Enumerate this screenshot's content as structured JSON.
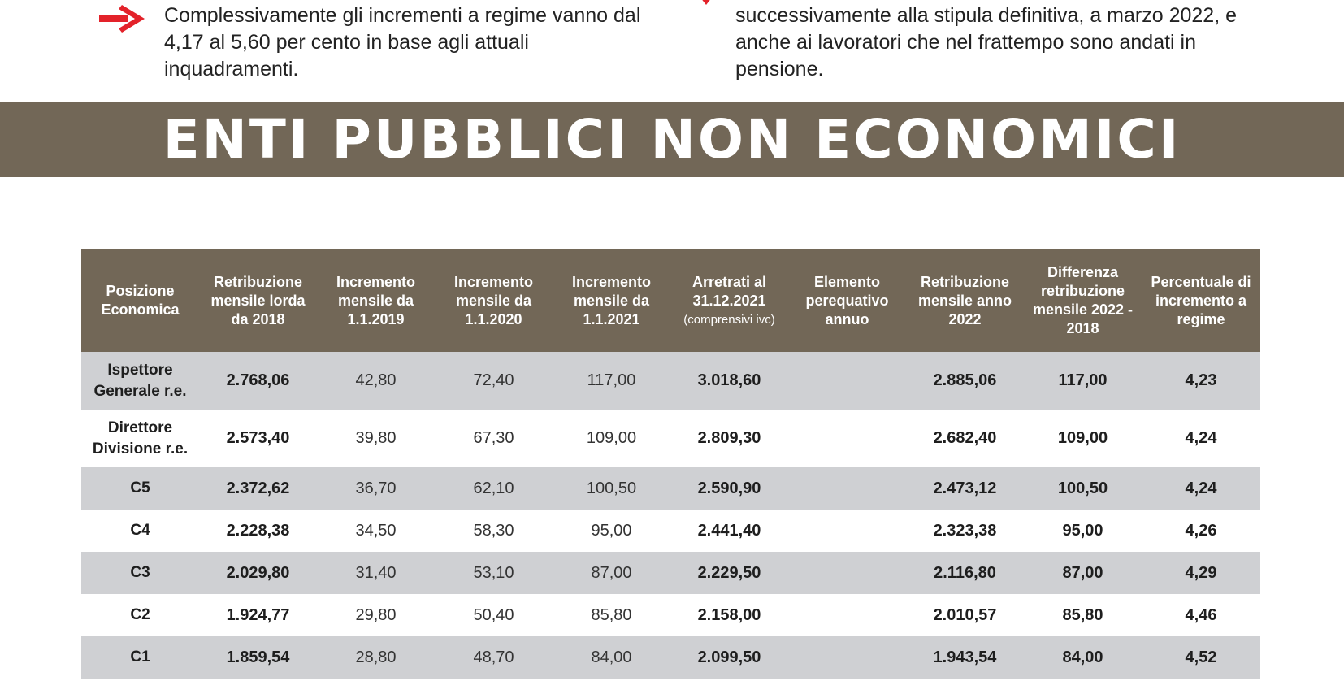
{
  "intro": {
    "left_text": "Complessivamente gli incrementi a regime vanno dal 4,17 al 5,60 per cento in base agli attuali inquadramenti.",
    "right_text": "successivamente alla stipula definitiva, a marzo 2022, e anche ai lavoratori che nel frattempo sono andati in pensione."
  },
  "banner": {
    "title": "ENTI PUBBLICI NON ECONOMICI"
  },
  "colors": {
    "header_bg": "#726757",
    "row_alt_bg": "#cfd0d3",
    "accent_red": "#e3222a"
  },
  "icons": {
    "left_bullet": "arrow-right-icon",
    "right_bullet": "red-mark-icon"
  },
  "table": {
    "headers": [
      {
        "label": "Posizione Economica",
        "sub": ""
      },
      {
        "label": "Retribuzione mensile lorda da 2018",
        "sub": ""
      },
      {
        "label": "Incremento mensile da 1.1.2019",
        "sub": ""
      },
      {
        "label": "Incremento mensile da 1.1.2020",
        "sub": ""
      },
      {
        "label": "Incremento mensile da 1.1.2021",
        "sub": ""
      },
      {
        "label": "Arretrati al 31.12.2021",
        "sub": "(comprensivi ivc)"
      },
      {
        "label": "Elemento perequativo annuo",
        "sub": ""
      },
      {
        "label": "Retribuzione mensile anno 2022",
        "sub": ""
      },
      {
        "label": "Differenza retribuzione mensile 2022 - 2018",
        "sub": ""
      },
      {
        "label": "Percentuale di incremento a regime",
        "sub": ""
      }
    ],
    "rows": [
      {
        "pos": "Ispettore Generale r.e.",
        "retr2018": "2.768,06",
        "inc2019": "42,80",
        "inc2020": "72,40",
        "inc2021": "117,00",
        "arretrati": "3.018,60",
        "perequativo": "",
        "retr2022": "2.885,06",
        "diff": "117,00",
        "perc": "4,23"
      },
      {
        "pos": "Direttore Divisione r.e.",
        "retr2018": "2.573,40",
        "inc2019": "39,80",
        "inc2020": "67,30",
        "inc2021": "109,00",
        "arretrati": "2.809,30",
        "perequativo": "",
        "retr2022": "2.682,40",
        "diff": "109,00",
        "perc": "4,24"
      },
      {
        "pos": "C5",
        "retr2018": "2.372,62",
        "inc2019": "36,70",
        "inc2020": "62,10",
        "inc2021": "100,50",
        "arretrati": "2.590,90",
        "perequativo": "",
        "retr2022": "2.473,12",
        "diff": "100,50",
        "perc": "4,24"
      },
      {
        "pos": "C4",
        "retr2018": "2.228,38",
        "inc2019": "34,50",
        "inc2020": "58,30",
        "inc2021": "95,00",
        "arretrati": "2.441,40",
        "perequativo": "",
        "retr2022": "2.323,38",
        "diff": "95,00",
        "perc": "4,26"
      },
      {
        "pos": "C3",
        "retr2018": "2.029,80",
        "inc2019": "31,40",
        "inc2020": "53,10",
        "inc2021": "87,00",
        "arretrati": "2.229,50",
        "perequativo": "",
        "retr2022": "2.116,80",
        "diff": "87,00",
        "perc": "4,29"
      },
      {
        "pos": "C2",
        "retr2018": "1.924,77",
        "inc2019": "29,80",
        "inc2020": "50,40",
        "inc2021": "85,80",
        "arretrati": "2.158,00",
        "perequativo": "",
        "retr2022": "2.010,57",
        "diff": "85,80",
        "perc": "4,46"
      },
      {
        "pos": "C1",
        "retr2018": "1.859,54",
        "inc2019": "28,80",
        "inc2020": "48,70",
        "inc2021": "84,00",
        "arretrati": "2.099,50",
        "perequativo": "",
        "retr2022": "1.943,54",
        "diff": "84,00",
        "perc": "4,52"
      }
    ]
  }
}
